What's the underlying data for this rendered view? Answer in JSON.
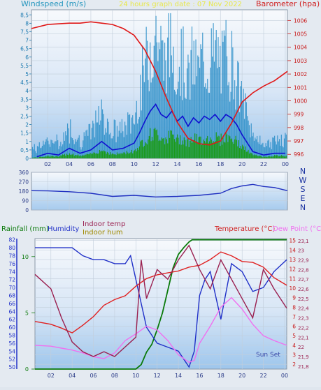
{
  "panel_top": {
    "left_title": "Windspeed (m/s)",
    "center_title": "24 hours graph date : 07 Nov 2022",
    "right_title": "Barometer (hpa)"
  },
  "panel_mid": {
    "compass": [
      "N",
      "W",
      "S",
      "E",
      "N"
    ]
  },
  "panel_bottom": {
    "title_rain": "Rainfall (mm)",
    "title_humidity": "Humidity",
    "title_indoor_temp": "Indoor temp",
    "title_indoor_hum": "Indoor hum",
    "title_temperature": "Temperature (°C)",
    "title_dewpoint": "Dew Point (°C)",
    "sunset_label": "Sun Set"
  },
  "colors": {
    "wind_bar": "#2a8ec8",
    "wind_avg": "#1010d0",
    "gust_fill": "#1a9a1a",
    "barometer": "#e01818",
    "direction": "#2030c0",
    "humidity": "#2030c8",
    "rain": "#0a7a0a",
    "temperature": "#e02020",
    "dewpoint": "#f070f0",
    "indoor_temp": "#9a2050",
    "indoor_hum": "#a08a00"
  },
  "chart_data": [
    {
      "type": "line",
      "id": "wind_baro",
      "x_ticks": [
        "02",
        "04",
        "06",
        "08",
        "10",
        "12",
        "14",
        "16",
        "18",
        "20",
        "22",
        "00"
      ],
      "y_left_ticks": [
        "0",
        "0,5",
        "1",
        "1,5",
        "2",
        "2,5",
        "3",
        "3,5",
        "4",
        "4,5",
        "5",
        "5,5",
        "6",
        "6,5",
        "7",
        "7,5",
        "8",
        "8,5"
      ],
      "y_right_ticks": [
        "996",
        "997",
        "998",
        "999",
        "1000",
        "1001",
        "1002",
        "1003",
        "1004",
        "1005",
        "1006"
      ],
      "ylim_left": [
        0,
        8.8
      ],
      "ylim_right": [
        995.7,
        1006.8
      ],
      "xlim": [
        0.5,
        24.2
      ],
      "wind_speed_series": {
        "x": [
          1,
          2,
          3,
          4,
          5,
          6,
          7,
          8,
          9,
          10,
          10.5,
          11,
          11.5,
          12,
          12.5,
          13,
          13.5,
          14,
          14.5,
          15,
          15.5,
          16,
          16.5,
          17,
          17.5,
          18,
          18.5,
          19,
          19.5,
          20,
          21,
          22,
          23,
          24
        ],
        "y": [
          0.1,
          0.3,
          0.2,
          0.6,
          0.3,
          0.5,
          1.0,
          0.5,
          0.6,
          0.9,
          1.5,
          2.2,
          2.8,
          3.2,
          2.6,
          2.4,
          2.8,
          2.2,
          2.5,
          1.9,
          2.4,
          2.1,
          2.5,
          2.3,
          2.6,
          2.2,
          2.6,
          2.4,
          2.0,
          1.4,
          0.4,
          0.2,
          0.3,
          0.3
        ]
      },
      "barometer_series": {
        "x": [
          0.5,
          2,
          4,
          5,
          6,
          7,
          8,
          9,
          10,
          11,
          12,
          13,
          14,
          15,
          16,
          17,
          18,
          19,
          20,
          21,
          22,
          23,
          24.2
        ],
        "y": [
          1005.4,
          1005.7,
          1005.8,
          1005.8,
          1005.9,
          1005.8,
          1005.7,
          1005.4,
          1004.9,
          1003.8,
          1002.2,
          1000.2,
          998.4,
          997.2,
          996.8,
          996.7,
          997.0,
          998.3,
          999.9,
          1000.6,
          1001.1,
          1001.5,
          1002.2
        ]
      }
    },
    {
      "type": "line",
      "id": "wind_direction",
      "y_ticks": [
        "360",
        "270",
        "180",
        "90",
        "0"
      ],
      "ylim": [
        0,
        360
      ],
      "x": [
        0.5,
        2,
        4,
        6,
        8,
        10,
        12,
        14,
        16,
        18,
        19,
        20,
        21,
        22,
        23,
        24.2
      ],
      "y": [
        185,
        183,
        175,
        160,
        130,
        140,
        125,
        130,
        140,
        160,
        205,
        230,
        245,
        225,
        215,
        185
      ]
    },
    {
      "type": "line",
      "id": "weather",
      "x_ticks": [
        "02",
        "04",
        "06",
        "08",
        "10",
        "12",
        "14",
        "16",
        "18",
        "20",
        "22",
        "00"
      ],
      "y_rain_ticks": [
        "0",
        "5",
        "10"
      ],
      "ylim_rain": [
        0,
        11.6
      ],
      "y_humidity_ticks": [
        "50",
        "52",
        "54",
        "56",
        "58",
        "60",
        "62",
        "64",
        "66",
        "68",
        "70",
        "72",
        "74",
        "76",
        "78",
        "80",
        "82"
      ],
      "ylim_humidity": [
        49.5,
        82.3
      ],
      "y_temp_ticks": [
        "2",
        "3",
        "4",
        "5",
        "6",
        "7",
        "8",
        "9",
        "10",
        "11",
        "12",
        "13",
        "14",
        "15"
      ],
      "ylim_temp": [
        1.5,
        15.2
      ],
      "y_indoor_ticks": [
        "21,8",
        "21,9",
        "22",
        "22,1",
        "22,2",
        "22,3",
        "22,4",
        "22,5",
        "22,6",
        "22,7",
        "22,8",
        "22,9",
        "23",
        "23,1"
      ],
      "ylim_indoor": [
        21.77,
        23.12
      ],
      "xlim": [
        0.5,
        24.2
      ],
      "humidity_series": {
        "x": [
          0.5,
          2,
          4,
          5,
          6,
          7,
          8,
          9,
          9.5,
          10,
          11,
          12,
          13,
          14,
          14.5,
          15,
          15.5,
          16,
          16.5,
          17,
          18,
          19,
          20,
          21,
          22,
          23,
          24.2
        ],
        "y": [
          80,
          80,
          80,
          78,
          77,
          77,
          76,
          76,
          78,
          72,
          60,
          56,
          55,
          54,
          52,
          50,
          54,
          68,
          72,
          74,
          62,
          76,
          74,
          69,
          70,
          74,
          77
        ]
      },
      "rain_series": {
        "x": [
          0.5,
          10,
          10.5,
          11,
          11.5,
          12,
          12.5,
          13,
          13.5,
          14,
          14.5,
          15,
          15.3,
          24.2
        ],
        "y": [
          0,
          0,
          0.4,
          1.5,
          2.2,
          3.5,
          5,
          7,
          9,
          10.2,
          10.8,
          11.3,
          11.5,
          11.5
        ]
      },
      "temperature_series": {
        "x": [
          0.5,
          1,
          2,
          3,
          4,
          5,
          6,
          7,
          8,
          9,
          10,
          11,
          12,
          13,
          14,
          15,
          16,
          17,
          18,
          19,
          20,
          21,
          22,
          23,
          24.2
        ],
        "y": [
          6.5,
          6.4,
          6.2,
          5.8,
          5.3,
          6.1,
          7.0,
          8.2,
          8.8,
          9.2,
          10.2,
          11.0,
          11.4,
          11.6,
          11.8,
          12.2,
          12.4,
          13.0,
          13.8,
          13.4,
          12.8,
          12.7,
          12.2,
          11.1,
          10.3
        ]
      },
      "dewpoint_series": {
        "x": [
          0.5,
          2,
          3,
          4,
          5,
          6,
          7,
          8,
          9,
          10,
          11,
          12,
          13,
          14,
          15,
          15.5,
          16,
          17,
          18,
          19,
          20,
          21,
          22,
          23,
          24.2
        ],
        "y": [
          4.0,
          3.9,
          3.7,
          3.5,
          3.2,
          2.8,
          2.6,
          3.2,
          4.5,
          5.2,
          6.0,
          5.6,
          4.5,
          3.0,
          2.2,
          2.4,
          4.2,
          6.0,
          8.0,
          9.0,
          7.8,
          6.2,
          5.0,
          4.5,
          4.0
        ]
      },
      "indoor_temp_series": {
        "x": [
          0.5,
          1,
          2,
          3,
          4,
          5,
          6,
          7,
          8,
          9,
          10,
          10.5,
          11,
          12,
          13,
          14,
          15,
          16,
          17,
          18,
          19,
          20,
          21,
          22,
          23,
          24.2
        ],
        "y": [
          22.75,
          22.7,
          22.6,
          22.3,
          22.05,
          21.95,
          21.9,
          21.95,
          21.9,
          22.0,
          22.1,
          22.9,
          22.5,
          22.8,
          22.7,
          22.9,
          23.05,
          22.8,
          22.6,
          22.9,
          22.7,
          22.5,
          22.3,
          22.8,
          22.6,
          22.4
        ]
      }
    }
  ]
}
